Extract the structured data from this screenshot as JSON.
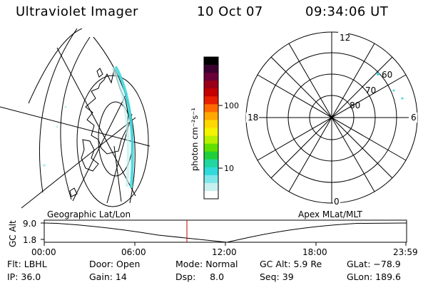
{
  "header": {
    "title": "Ultraviolet Imager",
    "date": "10 Oct 07",
    "time": "09:34:06 UT"
  },
  "colorbar": {
    "unit_label": "photon cm⁻²s⁻¹",
    "ticks": [
      "100",
      "10"
    ],
    "colors": [
      "#000000",
      "#3b0030",
      "#6a0038",
      "#9b0018",
      "#c40000",
      "#e62000",
      "#ff6a00",
      "#ffa800",
      "#ffd800",
      "#f4f400",
      "#b8f000",
      "#60e000",
      "#1ecf3a",
      "#22d6a0",
      "#30dada",
      "#7fe6ea",
      "#c8f0f0",
      "#ffffff"
    ]
  },
  "geo_panel": {
    "caption": "Geographic Lat/Lon",
    "aurora_color": "#40d8dc"
  },
  "polar_plot": {
    "caption": "Apex MLat/MLT",
    "mlt_labels": {
      "top": "12",
      "left": "18",
      "right": "6",
      "bottom": "0"
    },
    "lat_labels": [
      "60",
      "70",
      "80"
    ]
  },
  "altitude_plot": {
    "y_axis_label": "GC Alt",
    "y_ticks": [
      "9.0",
      "1.8"
    ],
    "x_ticks": [
      "00:00",
      "06:00",
      "12:00",
      "18:00",
      "23:59"
    ],
    "current_time_marker_color": "#cc0000"
  },
  "status": {
    "flt": "Flt: LBHL",
    "ip": "IP: 36.0",
    "door": "Door: Open",
    "gain": "Gain: 14",
    "mode": "Mode: Normal",
    "dsp": "Dsp:     8.0",
    "gc_alt": "GC Alt: 5.9 Re",
    "seq": "Seq: 39",
    "glat": "GLat: −78.9",
    "glon": "GLon: 189.6"
  }
}
